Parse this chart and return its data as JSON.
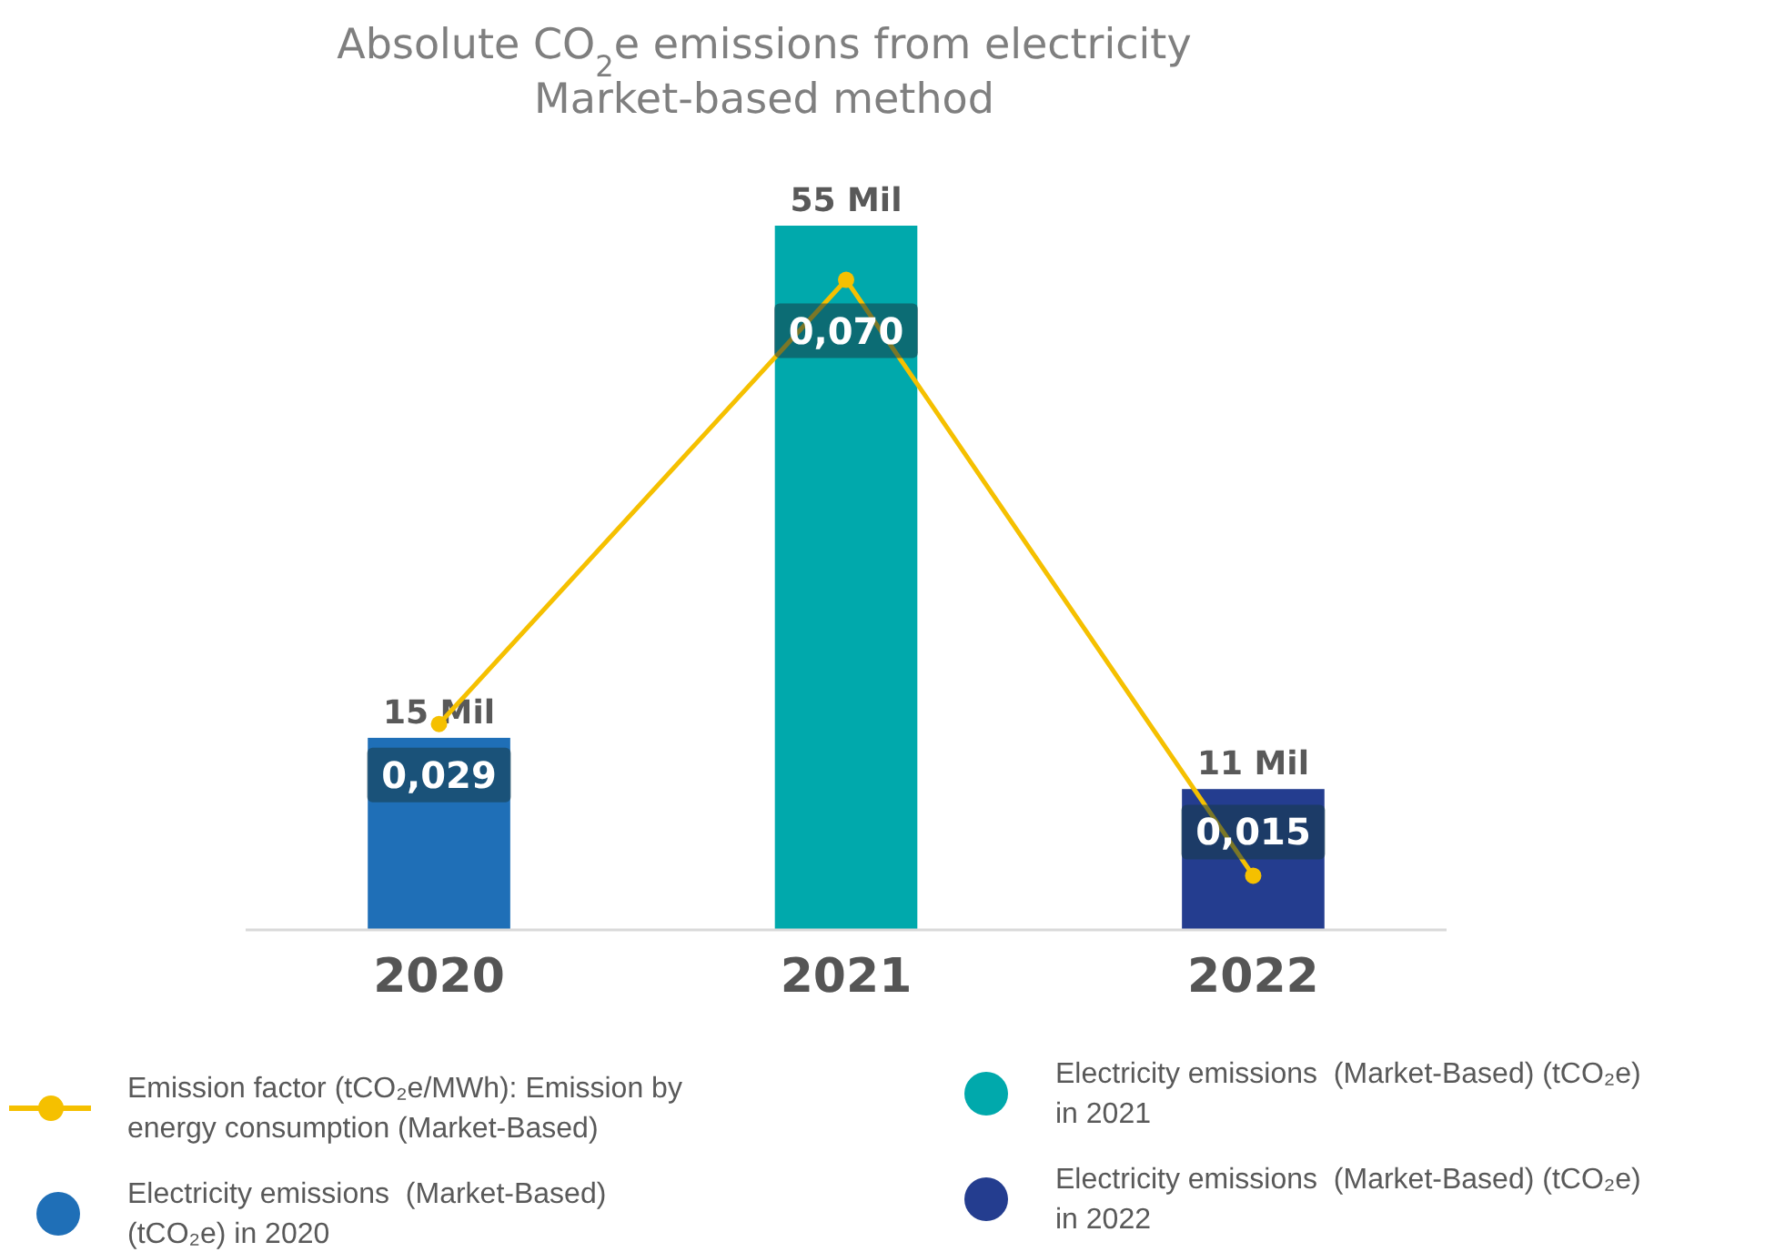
{
  "chart_data": {
    "type": "bar",
    "title": "Absolute CO$_{2}$e emissions from electricity",
    "subtitle": "Market-based method",
    "categories": [
      "2020",
      "2021",
      "2022"
    ],
    "ylim": [
      0,
      55
    ],
    "y2lim": [
      0.01,
      0.075
    ],
    "legend": "bottom",
    "marker": "circle",
    "series": [
      {
        "name": "Emission factor (tCO₂e/MWh): Emission by energy consumption (Market-Based)",
        "type": "line",
        "axis": "y2",
        "color": "#f5c000",
        "values": [
          0.029,
          0.07,
          0.015
        ],
        "value_labels": [
          "0,029",
          "0,070",
          "0,015"
        ]
      },
      {
        "name": "Electricity emissions  (Market-Based) (tCO₂e) in 2020",
        "color": "#1f6fb7",
        "values": [
          15,
          null,
          null
        ],
        "value_labels": [
          "15 Mil",
          null,
          null
        ]
      },
      {
        "name": "Electricity emissions  (Market-Based) (tCO₂e) in 2021",
        "color": "#00a9ac",
        "values": [
          null,
          55,
          null
        ],
        "value_labels": [
          null,
          "55 Mil",
          null
        ]
      },
      {
        "name": "Electricity emissions  (Market-Based) (tCO₂e) in 2022",
        "color": "#243d8f",
        "values": [
          null,
          null,
          11
        ],
        "value_labels": [
          null,
          null,
          "11 Mil"
        ]
      }
    ]
  }
}
